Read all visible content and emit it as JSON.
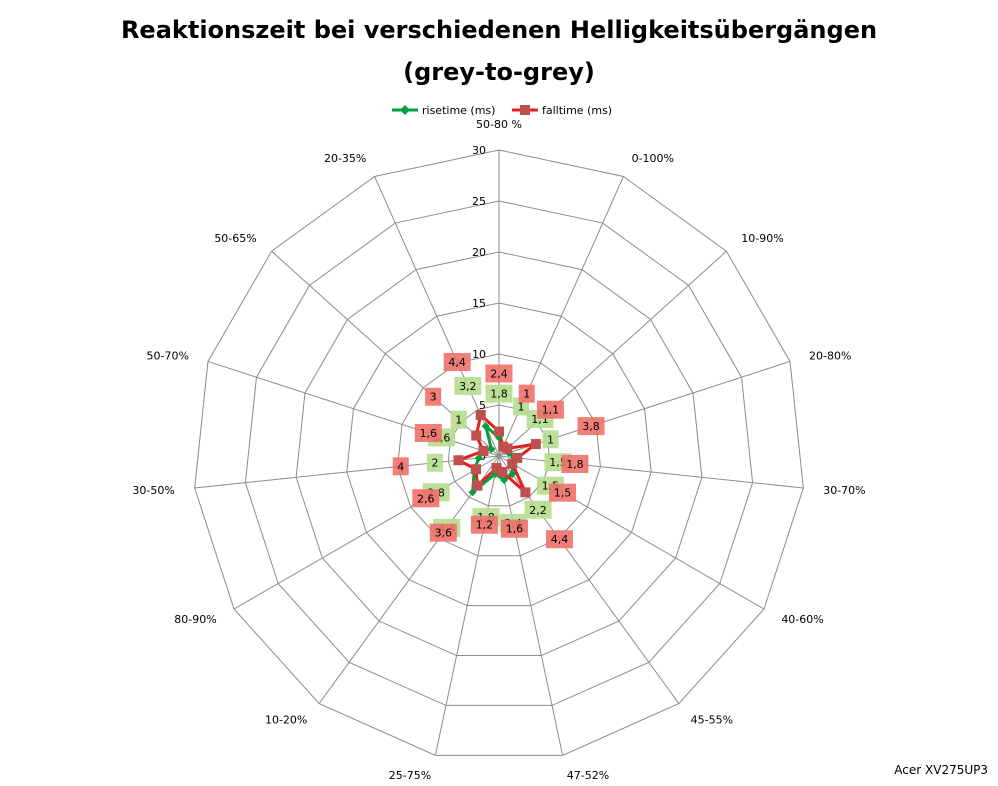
{
  "chart_data": {
    "type": "radar",
    "title_line1": "Reaktionszeit bei verschiedenen Helligkeitsübergängen",
    "title_line2": "(grey-to-grey)",
    "categories": [
      "50-80 %",
      "0-100%",
      "10-90%",
      "20-80%",
      "30-70%",
      "40-60%",
      "45-55%",
      "47-52%",
      "25-75%",
      "10-20%",
      "80-90%",
      "30-50%",
      "50-70%",
      "50-65%",
      "20-35%"
    ],
    "ticks": [
      0,
      5,
      10,
      15,
      20,
      25,
      30
    ],
    "tick_labels": [
      "0",
      "5",
      "10",
      "15",
      "20",
      "25",
      "30"
    ],
    "rmax": 30,
    "series": [
      {
        "name": "risetime (ms)",
        "color": "#00a040",
        "label_bg": "#b6dd8e",
        "values": [
          1.8,
          1,
          1.1,
          1,
          1.5,
          1.5,
          2.2,
          2.4,
          1.8,
          4.4,
          2.8,
          2,
          1.6,
          1,
          3.2
        ],
        "labels": [
          "1,8",
          "1",
          "1,1",
          "1",
          "1,5",
          "1,5",
          "2,2",
          "2,4",
          "1,8",
          "4,4",
          "2,8",
          "2",
          "1,6",
          "1",
          "3,2"
        ]
      },
      {
        "name": "falltime (ms)",
        "color": "#e02020",
        "label_bg": "#f0706a",
        "values": [
          2.4,
          1,
          1.1,
          3.8,
          1.8,
          1.5,
          4.4,
          1.6,
          1.2,
          3.6,
          2.6,
          4,
          1.6,
          3,
          4.4
        ],
        "labels": [
          "2,4",
          "1",
          "1,1",
          "3,8",
          "1,8",
          "1,5",
          "4,4",
          "1,6",
          "1,2",
          "3,6",
          "2,6",
          "4",
          "1,6",
          "3",
          "4,4"
        ]
      }
    ],
    "legend_position": "top",
    "grid": true
  },
  "footer": "Acer XV275UP3"
}
